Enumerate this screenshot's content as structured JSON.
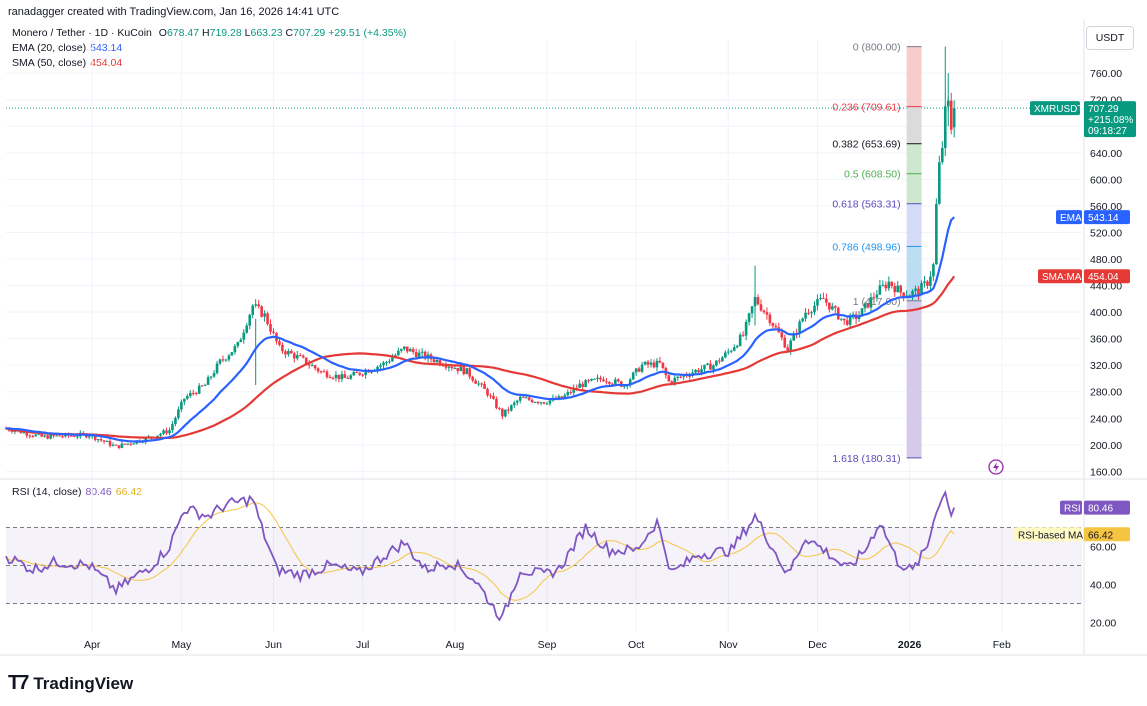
{
  "header": {
    "author_line": "ranadagger created with TradingView.com, Jan 16, 2026 14:41 UTC"
  },
  "legend": {
    "symbol": "Monero / Tether · 1D · KuCoin",
    "ohlc": {
      "o_label": "O",
      "o": "678.47",
      "h_label": "H",
      "h": "719.28",
      "l_label": "L",
      "l": "663.23",
      "c_label": "C",
      "c": "707.29",
      "change": "+29.51 (+4.35%)"
    },
    "ema_label": "EMA (20, close)",
    "ema_value": "543.14",
    "sma_label": "SMA (50, close)",
    "sma_value": "454.04",
    "rsi_label": "RSI (14, close)",
    "rsi_value": "80.46",
    "rsi_ma_value": "66.42"
  },
  "currency_button": "USDT",
  "price_tags": {
    "symbol": "XMRUSDT",
    "price": "707.29",
    "pct": "+215.08%",
    "timer": "09:18:27",
    "ema_tag": "EMA",
    "ema_val": "543.14",
    "sma_tag": "SMA:MA",
    "sma_val": "454.04",
    "rsi_tag": "RSI",
    "rsi_val": "80.46",
    "rsi_ma_tag": "RSI-based MA",
    "rsi_ma_val": "66.42"
  },
  "fib_labels": [
    {
      "ratio": "0",
      "price": "800.00",
      "color": "#787b86"
    },
    {
      "ratio": "0.236",
      "price": "709.61",
      "color": "#f23645"
    },
    {
      "ratio": "0.382",
      "price": "653.69",
      "color": "#131722"
    },
    {
      "ratio": "0.5",
      "price": "608.50",
      "color": "#4caf50"
    },
    {
      "ratio": "0.618",
      "price": "563.31",
      "color": "#5b4bb8"
    },
    {
      "ratio": "0.786",
      "price": "498.96",
      "color": "#2196f3"
    },
    {
      "ratio": "1",
      "price": "417.00",
      "color": "#787b86"
    },
    {
      "ratio": "1.618",
      "price": "180.31",
      "color": "#5b4bb8"
    }
  ],
  "logo": {
    "text": "TradingView"
  },
  "colors": {
    "up": "#089981",
    "down": "#f23645",
    "ema": "#2962ff",
    "sma": "#e53935",
    "rsi": "#7e57c2",
    "rsi_ma": "#f5c542",
    "grid": "#f0f3fa"
  },
  "chart_data": [
    {
      "type": "candlestick",
      "title": "Monero / Tether · 1D · KuCoin",
      "ylim": [
        150,
        810
      ],
      "y_ticks": [
        160,
        200,
        240,
        280,
        320,
        360,
        400,
        440,
        480,
        520,
        560,
        600,
        640,
        680,
        720,
        760
      ],
      "x_tick_labels": [
        "Apr",
        "May",
        "Jun",
        "Jul",
        "Aug",
        "Sep",
        "Oct",
        "Nov",
        "Dec",
        "2026",
        "Feb"
      ],
      "x_tick_dates": [
        "2025-04-01",
        "2025-05-01",
        "2025-06-01",
        "2025-07-01",
        "2025-08-01",
        "2025-09-01",
        "2025-10-01",
        "2025-11-01",
        "2025-12-01",
        "2026-01-01",
        "2026-02-01"
      ],
      "x_range": [
        "2025-03-03",
        "2026-02-28"
      ],
      "price_anchors": [
        [
          "2025-03-03",
          225
        ],
        [
          "2025-03-15",
          212
        ],
        [
          "2025-03-31",
          215
        ],
        [
          "2025-04-09",
          197
        ],
        [
          "2025-04-21",
          212
        ],
        [
          "2025-04-27",
          222
        ],
        [
          "2025-05-02",
          270
        ],
        [
          "2025-05-09",
          290
        ],
        [
          "2025-05-14",
          325
        ],
        [
          "2025-05-20",
          350
        ],
        [
          "2025-05-25",
          410
        ],
        [
          "2025-05-29",
          395
        ],
        [
          "2025-06-03",
          345
        ],
        [
          "2025-06-10",
          330
        ],
        [
          "2025-06-17",
          310
        ],
        [
          "2025-06-25",
          300
        ],
        [
          "2025-07-01",
          310
        ],
        [
          "2025-07-08",
          322
        ],
        [
          "2025-07-15",
          345
        ],
        [
          "2025-07-22",
          333
        ],
        [
          "2025-07-29",
          322
        ],
        [
          "2025-08-05",
          310
        ],
        [
          "2025-08-12",
          278
        ],
        [
          "2025-08-17",
          245
        ],
        [
          "2025-08-23",
          270
        ],
        [
          "2025-08-31",
          265
        ],
        [
          "2025-09-06",
          270
        ],
        [
          "2025-09-12",
          290
        ],
        [
          "2025-09-20",
          300
        ],
        [
          "2025-09-27",
          290
        ],
        [
          "2025-10-03",
          320
        ],
        [
          "2025-10-09",
          322
        ],
        [
          "2025-10-12",
          295
        ],
        [
          "2025-10-20",
          310
        ],
        [
          "2025-10-27",
          320
        ],
        [
          "2025-11-01",
          340
        ],
        [
          "2025-11-06",
          365
        ],
        [
          "2025-11-10",
          420
        ],
        [
          "2025-11-15",
          390
        ],
        [
          "2025-11-21",
          345
        ],
        [
          "2025-11-27",
          400
        ],
        [
          "2025-12-03",
          420
        ],
        [
          "2025-12-10",
          385
        ],
        [
          "2025-12-15",
          395
        ],
        [
          "2025-12-21",
          430
        ],
        [
          "2025-12-25",
          445
        ],
        [
          "2025-12-29",
          430
        ],
        [
          "2026-01-01",
          428
        ],
        [
          "2026-01-04",
          432
        ],
        [
          "2026-01-07",
          445
        ],
        [
          "2026-01-09",
          470
        ],
        [
          "2026-01-10",
          560
        ],
        [
          "2026-01-11",
          620
        ],
        [
          "2026-01-12",
          650
        ],
        [
          "2026-01-13",
          700
        ],
        [
          "2026-01-14",
          712
        ],
        [
          "2026-01-15",
          678
        ],
        [
          "2026-01-16",
          707
        ]
      ],
      "last_ohlc": {
        "open": 678.47,
        "high": 719.28,
        "low": 663.23,
        "close": 707.29
      },
      "series": [
        {
          "name": "EMA (20, close)",
          "last": 543.14
        },
        {
          "name": "SMA (50, close)",
          "last": 454.04
        }
      ],
      "fibonacci": {
        "from": 800.0,
        "to": 417.0,
        "levels": [
          0,
          0.236,
          0.382,
          0.5,
          0.618,
          0.786,
          1,
          1.618
        ],
        "prices": [
          800.0,
          709.61,
          653.69,
          608.5,
          563.31,
          498.96,
          417.0,
          180.31
        ]
      }
    },
    {
      "type": "line",
      "title": "RSI (14, close)",
      "ylim": [
        15,
        95
      ],
      "y_ticks": [
        20,
        40,
        60
      ],
      "bands": [
        30,
        50,
        70
      ],
      "rsi_anchors": [
        [
          "2025-03-03",
          55
        ],
        [
          "2025-03-12",
          48
        ],
        [
          "2025-03-20",
          52
        ],
        [
          "2025-03-31",
          50
        ],
        [
          "2025-04-09",
          37
        ],
        [
          "2025-04-21",
          50
        ],
        [
          "2025-04-27",
          60
        ],
        [
          "2025-05-02",
          80
        ],
        [
          "2025-05-10",
          76
        ],
        [
          "2025-05-16",
          82
        ],
        [
          "2025-05-22",
          84
        ],
        [
          "2025-05-25",
          85
        ],
        [
          "2025-05-28",
          70
        ],
        [
          "2025-06-02",
          48
        ],
        [
          "2025-06-10",
          45
        ],
        [
          "2025-06-20",
          50
        ],
        [
          "2025-06-30",
          46
        ],
        [
          "2025-07-08",
          55
        ],
        [
          "2025-07-15",
          62
        ],
        [
          "2025-07-22",
          48
        ],
        [
          "2025-07-31",
          52
        ],
        [
          "2025-08-08",
          42
        ],
        [
          "2025-08-14",
          28
        ],
        [
          "2025-08-17",
          22
        ],
        [
          "2025-08-23",
          48
        ],
        [
          "2025-08-31",
          45
        ],
        [
          "2025-09-05",
          48
        ],
        [
          "2025-09-14",
          70
        ],
        [
          "2025-09-22",
          58
        ],
        [
          "2025-10-01",
          58
        ],
        [
          "2025-10-08",
          73
        ],
        [
          "2025-10-13",
          46
        ],
        [
          "2025-10-22",
          56
        ],
        [
          "2025-11-02",
          58
        ],
        [
          "2025-11-10",
          76
        ],
        [
          "2025-11-15",
          62
        ],
        [
          "2025-11-21",
          45
        ],
        [
          "2025-11-27",
          65
        ],
        [
          "2025-12-05",
          56
        ],
        [
          "2025-12-11",
          48
        ],
        [
          "2025-12-17",
          58
        ],
        [
          "2025-12-22",
          73
        ],
        [
          "2025-12-28",
          52
        ],
        [
          "2026-01-02",
          47
        ],
        [
          "2026-01-07",
          60
        ],
        [
          "2026-01-10",
          80
        ],
        [
          "2026-01-13",
          88
        ],
        [
          "2026-01-14",
          84
        ],
        [
          "2026-01-15",
          77
        ],
        [
          "2026-01-16",
          80.46
        ]
      ],
      "series": [
        {
          "name": "RSI (14, close)",
          "last": 80.46
        },
        {
          "name": "RSI-based MA",
          "last": 66.42
        }
      ]
    }
  ]
}
